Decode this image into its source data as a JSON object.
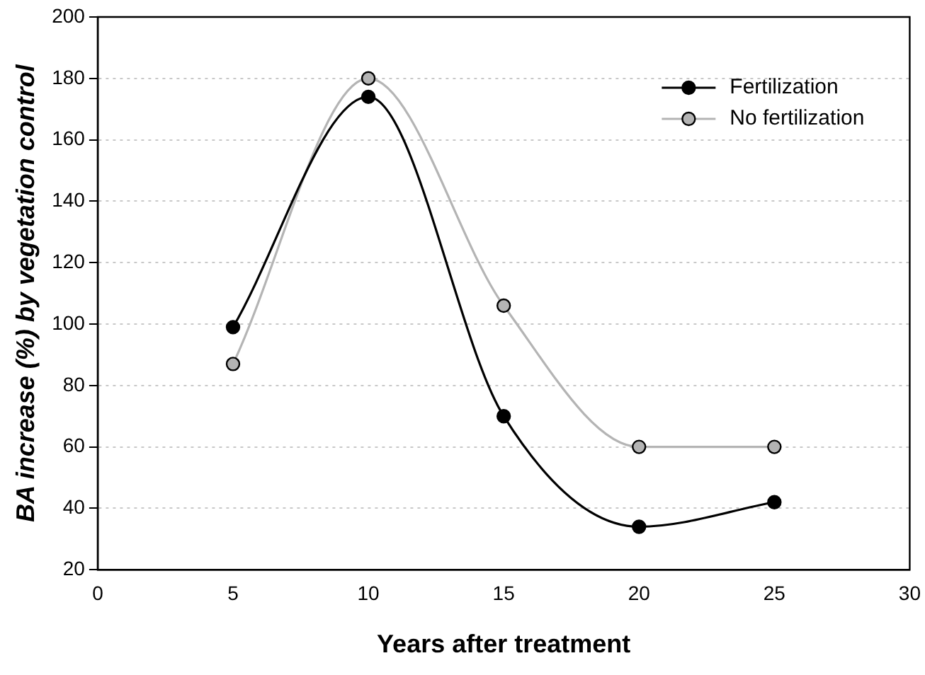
{
  "chart_data": {
    "type": "line",
    "xlabel": "Years after treatment",
    "ylabel": "BA increase (%) by vegetation control",
    "x": [
      5,
      10,
      15,
      20,
      25
    ],
    "series": [
      {
        "name": "Fertilization",
        "color": "#000000",
        "values": [
          99,
          174,
          70,
          34,
          42
        ]
      },
      {
        "name": "No fertilization",
        "color": "#b4b4b4",
        "values": [
          87,
          180,
          106,
          60,
          60
        ]
      }
    ],
    "xlim": [
      0,
      30
    ],
    "xticks": [
      0,
      5,
      10,
      15,
      20,
      25,
      30
    ],
    "ylim": [
      20,
      200
    ],
    "yticks": [
      20,
      40,
      60,
      80,
      100,
      120,
      140,
      160,
      180,
      200
    ],
    "grid": "y",
    "legend": "top right",
    "marker": "circle",
    "line_style": "solid"
  }
}
